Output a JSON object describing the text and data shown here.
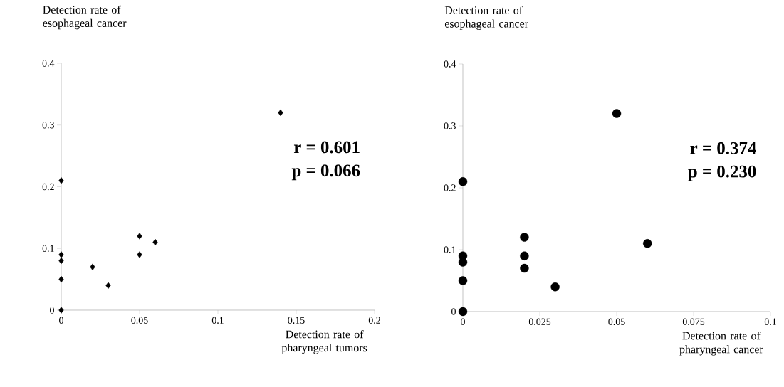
{
  "chart_data": [
    {
      "type": "scatter",
      "ylabel": "Detection rate of esophageal cancer",
      "xlabel": "Detection rate of pharyngeal tumors",
      "marker": "diamond",
      "color": "#000000",
      "x": [
        0,
        0,
        0,
        0,
        0,
        0.02,
        0.03,
        0.05,
        0.05,
        0.06,
        0.14
      ],
      "values": [
        0,
        0.05,
        0.08,
        0.09,
        0.21,
        0.07,
        0.04,
        0.09,
        0.12,
        0.11,
        0.32
      ],
      "xlim": [
        0,
        0.2
      ],
      "ylim": [
        0,
        0.4
      ],
      "xticks": [
        0,
        0.05,
        0.1,
        0.15,
        0.2
      ],
      "yticks": [
        0,
        0.1,
        0.2,
        0.3,
        0.4
      ],
      "annotations": [
        "r = 0.601",
        "p = 0.066"
      ]
    },
    {
      "type": "scatter",
      "ylabel": "Detection rate of esophageal cancer",
      "xlabel": "Detection rate of pharyngeal cancer",
      "marker": "circle",
      "color": "#000000",
      "x": [
        0,
        0,
        0,
        0,
        0,
        0.02,
        0.02,
        0.02,
        0.03,
        0.05,
        0.06
      ],
      "values": [
        0,
        0.05,
        0.08,
        0.09,
        0.21,
        0.07,
        0.09,
        0.12,
        0.04,
        0.32,
        0.11
      ],
      "xlim": [
        0,
        0.1
      ],
      "ylim": [
        0,
        0.4
      ],
      "xticks": [
        0,
        0.025,
        0.05,
        0.075,
        0.1
      ],
      "yticks": [
        0,
        0.1,
        0.2,
        0.3,
        0.4
      ],
      "annotations": [
        "r = 0.374",
        "p = 0.230"
      ]
    }
  ]
}
